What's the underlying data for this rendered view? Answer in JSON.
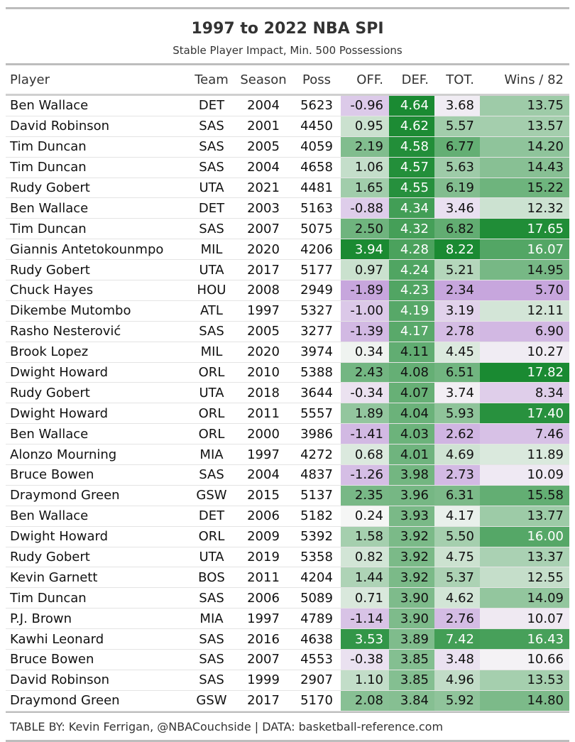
{
  "title": "1997 to 2022 NBA SPI",
  "subtitle": "Stable Player Impact, Min. 500 Possessions",
  "footer": "TABLE BY: Kevin Ferrigan, @NBACouchside | DATA: basketball-reference.com",
  "chart_data": {
    "type": "table",
    "columns": [
      "Player",
      "Team",
      "Season",
      "Poss",
      "OFF.",
      "DEF.",
      "TOT.",
      "Wins / 82"
    ],
    "rows": [
      [
        "Ben Wallace",
        "DET",
        "2004",
        "5623",
        "-0.96",
        "4.64",
        "3.68",
        "13.75"
      ],
      [
        "David Robinson",
        "SAS",
        "2001",
        "4450",
        "0.95",
        "4.62",
        "5.57",
        "13.57"
      ],
      [
        "Tim Duncan",
        "SAS",
        "2005",
        "4059",
        "2.19",
        "4.58",
        "6.77",
        "14.20"
      ],
      [
        "Tim Duncan",
        "SAS",
        "2004",
        "4658",
        "1.06",
        "4.57",
        "5.63",
        "14.43"
      ],
      [
        "Rudy Gobert",
        "UTA",
        "2021",
        "4481",
        "1.65",
        "4.55",
        "6.19",
        "15.22"
      ],
      [
        "Ben Wallace",
        "DET",
        "2003",
        "5163",
        "-0.88",
        "4.34",
        "3.46",
        "12.32"
      ],
      [
        "Tim Duncan",
        "SAS",
        "2007",
        "5075",
        "2.50",
        "4.32",
        "6.82",
        "17.65"
      ],
      [
        "Giannis Antetokounmpo",
        "MIL",
        "2020",
        "4206",
        "3.94",
        "4.28",
        "8.22",
        "16.07"
      ],
      [
        "Rudy Gobert",
        "UTA",
        "2017",
        "5177",
        "0.97",
        "4.24",
        "5.21",
        "14.95"
      ],
      [
        "Chuck Hayes",
        "HOU",
        "2008",
        "2949",
        "-1.89",
        "4.23",
        "2.34",
        "5.70"
      ],
      [
        "Dikembe Mutombo",
        "ATL",
        "1997",
        "5327",
        "-1.00",
        "4.19",
        "3.19",
        "12.11"
      ],
      [
        "Rasho Nesterović",
        "SAS",
        "2005",
        "3277",
        "-1.39",
        "4.17",
        "2.78",
        "6.90"
      ],
      [
        "Brook Lopez",
        "MIL",
        "2020",
        "3974",
        "0.34",
        "4.11",
        "4.45",
        "10.27"
      ],
      [
        "Dwight Howard",
        "ORL",
        "2010",
        "5388",
        "2.43",
        "4.08",
        "6.51",
        "17.82"
      ],
      [
        "Rudy Gobert",
        "UTA",
        "2018",
        "3644",
        "-0.34",
        "4.07",
        "3.74",
        "8.34"
      ],
      [
        "Dwight Howard",
        "ORL",
        "2011",
        "5557",
        "1.89",
        "4.04",
        "5.93",
        "17.40"
      ],
      [
        "Ben Wallace",
        "ORL",
        "2000",
        "3986",
        "-1.41",
        "4.03",
        "2.62",
        "7.46"
      ],
      [
        "Alonzo Mourning",
        "MIA",
        "1997",
        "4272",
        "0.68",
        "4.01",
        "4.69",
        "11.89"
      ],
      [
        "Bruce Bowen",
        "SAS",
        "2004",
        "4837",
        "-1.26",
        "3.98",
        "2.73",
        "10.09"
      ],
      [
        "Draymond Green",
        "GSW",
        "2015",
        "5137",
        "2.35",
        "3.96",
        "6.31",
        "15.58"
      ],
      [
        "Ben Wallace",
        "DET",
        "2006",
        "5182",
        "0.24",
        "3.93",
        "4.17",
        "13.77"
      ],
      [
        "Dwight Howard",
        "ORL",
        "2009",
        "5392",
        "1.58",
        "3.92",
        "5.50",
        "16.00"
      ],
      [
        "Rudy Gobert",
        "UTA",
        "2019",
        "5358",
        "0.82",
        "3.92",
        "4.75",
        "13.37"
      ],
      [
        "Kevin Garnett",
        "BOS",
        "2011",
        "4204",
        "1.44",
        "3.92",
        "5.37",
        "12.55"
      ],
      [
        "Tim Duncan",
        "SAS",
        "2006",
        "5089",
        "0.71",
        "3.90",
        "4.62",
        "14.09"
      ],
      [
        "P.J. Brown",
        "MIA",
        "1997",
        "4789",
        "-1.14",
        "3.90",
        "2.76",
        "10.07"
      ],
      [
        "Kawhi Leonard",
        "SAS",
        "2016",
        "4638",
        "3.53",
        "3.89",
        "7.42",
        "16.43"
      ],
      [
        "Bruce Bowen",
        "SAS",
        "2007",
        "4553",
        "-0.38",
        "3.85",
        "3.48",
        "10.66"
      ],
      [
        "David Robinson",
        "SAS",
        "1999",
        "2907",
        "1.10",
        "3.85",
        "4.96",
        "13.53"
      ],
      [
        "Draymond Green",
        "GSW",
        "2017",
        "5170",
        "2.08",
        "3.84",
        "5.92",
        "14.80"
      ]
    ],
    "colors": {
      "negative": "#c7a6dd",
      "neutral": "#f7f7f7",
      "positive": "#1a8a32"
    }
  }
}
